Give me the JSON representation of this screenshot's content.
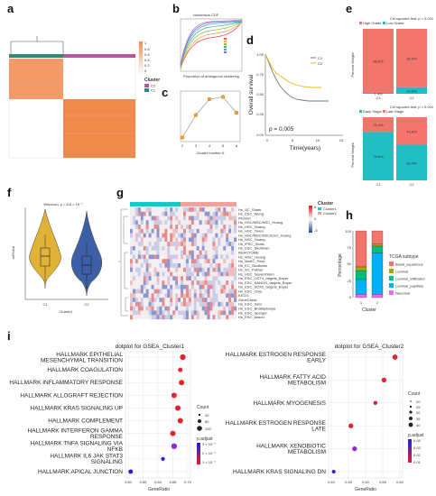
{
  "panels": {
    "a": "a",
    "b": "b",
    "c": "c",
    "d": "d",
    "e": "e",
    "f": "f",
    "g": "g",
    "h": "h",
    "i": "i"
  },
  "a": {
    "legend_title": "Cluster",
    "legend_items": [
      "C2",
      "C1"
    ],
    "scale_ticks": [
      "1",
      "0.8",
      "0.6",
      "0.4",
      "0.2",
      "0"
    ],
    "colors": {
      "c1": "#2e8b74",
      "c2": "#b5579b",
      "heat_high": "#f08a4b",
      "heat_low": "#ffffff"
    }
  },
  "b": {
    "title": "consensus CDF",
    "xlabel": "Proportion of ambiguous clustering"
  },
  "c": {
    "xlabel": "Cluster number K",
    "xticks": [
      "2",
      "3",
      "4",
      "5",
      "6"
    ],
    "chart_data": {
      "type": "line",
      "x": [
        2,
        3,
        4,
        5,
        6
      ],
      "y": [
        0.05,
        0.55,
        0.9,
        0.95,
        0.6
      ]
    }
  },
  "d": {
    "ylabel": "Overall survival",
    "xlabel": "Time(years)",
    "pvalue": "p = 0.005",
    "legend": [
      "C1",
      "C2"
    ],
    "xticks": [
      "0",
      "5",
      "10",
      "15"
    ],
    "yticks": [
      "0.00",
      "0.25",
      "0.50",
      "0.75",
      "1.00"
    ],
    "colors": {
      "c1": "#7a7a7a",
      "c2": "#e8b923"
    }
  },
  "e": {
    "top": {
      "test": "Chi squared test: p < 0.001",
      "legend": [
        "High Grade",
        "Low Grade"
      ],
      "ylabel": "Percent Weight",
      "chart_data": {
        "type": "bar",
        "categories": [
          "C1",
          "C2"
        ],
        "series": [
          {
            "name": "High Grade",
            "values": [
              98.6,
              90.0
            ]
          },
          {
            "name": "Low Grade",
            "values": [
              1.4,
              10.0
            ]
          }
        ]
      },
      "labels": [
        "98.6%",
        "1.4%",
        "90.0%",
        "10.0%"
      ]
    },
    "bottom": {
      "test": "Chi squared test: p < 0.001",
      "legend": [
        "Early Stage",
        "Late Stage"
      ],
      "ylabel": "Percent Weight",
      "chart_data": {
        "type": "bar",
        "categories": [
          "C1",
          "C2"
        ],
        "series": [
          {
            "name": "Late Stage",
            "values": [
              23.4,
              43.6
            ]
          },
          {
            "name": "Early Stage",
            "values": [
              76.6,
              56.4
            ]
          }
        ]
      },
      "labels": [
        "23.4%",
        "76.6%",
        "43.6%",
        "56.4%"
      ]
    },
    "colors": {
      "salmon": "#f4756c",
      "teal": "#1fbfc4"
    }
  },
  "f": {
    "title": "Wilcoxon, p = 8.6 × 10⁻⁷",
    "ylabel": "mRNAsi",
    "xlabel": "Cluster1",
    "xticks": [
      "C1",
      "C2"
    ],
    "colors": {
      "c1": "#e0b235",
      "c2": "#3d5fa6"
    }
  },
  "g": {
    "legend_title": "Cluster",
    "legend_items": [
      "Cluster1",
      "Cluster2"
    ],
    "scale_ticks": [
      "5",
      "0",
      "-5"
    ],
    "rows": [
      "Hs_SC_Shats",
      "Hs_ESC_Wong",
      "Plurinet",
      "Hs_HSC/MSC/NSC_Huang",
      "Hs_HSC_Huang",
      "Hs_HSC_Toren",
      "Hs_HSC/MSC/NSC/ESC_Huang",
      "Hs_NSC_Huang",
      "Hs_iPSC_Shats",
      "Hs_ESC_Skottman",
      "REACTOME",
      "Hs_MSC_Huang",
      "Hs_MaSC_Pece",
      "Hs_EC_Skottman",
      "Hs_SC_Palmer",
      "Hs_HSC_Novershtern",
      "Hs_ESC_OCT4_targets_Boyer",
      "Hs_ESC_NANOG_targets_Boyer",
      "Hs_ESC_SOX2_targets_Boyer",
      "Hs_ESC_Chia",
      "KEGG",
      "GeneCards",
      "Hs_ESC_Sato",
      "Hs_ESC_Bhattacharya",
      "Hs_ESC_Sperger",
      "Hs_ESC_Assou"
    ],
    "colors": {
      "cluster1": "#1fc3c9",
      "cluster2": "#f4a09a"
    }
  },
  "h": {
    "ylabel": "Percentage",
    "xlabel": "Cluster",
    "xticks": [
      "1",
      "2"
    ],
    "yticks": [
      "0",
      "25",
      "50",
      "75",
      "100"
    ],
    "legend_title": "TCGA subtype",
    "legend_items": [
      "Basal_squamous",
      "Luminal",
      "Luminal_infiltrated",
      "Luminal_papillary",
      "Neuronal"
    ],
    "chart_data": {
      "type": "bar",
      "categories": [
        "1",
        "2"
      ],
      "series": [
        {
          "name": "Basal_squamous",
          "values": [
            54,
            20
          ]
        },
        {
          "name": "Luminal",
          "values": [
            6,
            3
          ]
        },
        {
          "name": "Luminal_infiltrated",
          "values": [
            13,
            10
          ]
        },
        {
          "name": "Luminal_papillary",
          "values": [
            22,
            62
          ]
        },
        {
          "name": "Neuronal",
          "values": [
            5,
            5
          ]
        }
      ]
    },
    "colors": [
      "#f4756c",
      "#a3a500",
      "#00bf7d",
      "#00b0f6",
      "#e76bf3"
    ]
  },
  "i": {
    "left": {
      "title": "dotplot for GSEA_Cluster1",
      "xlabel": "GeneRatio",
      "xticks": [
        "0.50",
        "0.55",
        "0.60",
        "0.65",
        "0.70"
      ],
      "terms": [
        "HALLMARK EPITHELIAL MESENCHYMAL TRANSITION",
        "HALLMARK COAGULATION",
        "HALLMARK INFLAMMATORY RESPONSE",
        "HALLMARK ALLOGRAFT REJECTION",
        "HALLMARK KRAS SIGNALING UP",
        "HALLMARK COMPLEMENT",
        "HALLMARK INTERFERON GAMMA RESPONSE",
        "HALLMARK TNFA SIGNALING VIA NFKB",
        "HALLMARK IL6 JAK STAT3 SIGNALING",
        "HALLMARK APICAL JUNCTION"
      ],
      "count_title": "Count",
      "count_items": [
        "40",
        "80",
        "120"
      ],
      "padj_title": "p.adjust",
      "padj_ticks": [
        "3 × 10⁻⁷",
        "2 × 10⁻⁷",
        "1 × 10⁻⁷"
      ],
      "chart_data": {
        "type": "scatter",
        "x": [
          0.7,
          0.69,
          0.695,
          0.665,
          0.68,
          0.69,
          0.66,
          0.665,
          0.62,
          0.49
        ],
        "size": [
          110,
          70,
          100,
          100,
          100,
          100,
          100,
          110,
          50,
          70
        ]
      }
    },
    "right": {
      "title": "dotplot for GSEA_Cluster2",
      "xlabel": "GeneRatio",
      "xticks": [
        "0.40",
        "0.45",
        "0.50",
        "0.55",
        "0.60"
      ],
      "terms": [
        "HALLMARK ESTROGEN RESPONSE EARLY",
        "HALLMARK FATTY ACID METABOLISM",
        "HALLMARK MYOGENESIS",
        "HALLMARK ESTROGEN RESPONSE LATE",
        "HALLMARK XENOBIOTIC METABOLISM",
        "HALLMARK KRAS SIGNALING DN"
      ],
      "count_title": "Count",
      "count_items": [
        "20",
        "25",
        "30",
        "35",
        "40"
      ],
      "padj_title": "p.adjust",
      "padj_ticks": [
        "0.04",
        "0.03",
        "0.02",
        "0.01"
      ],
      "chart_data": {
        "type": "scatter",
        "x": [
          0.62,
          0.575,
          0.54,
          0.44,
          0.455,
          0.37
        ],
        "size": [
          40,
          35,
          25,
          35,
          35,
          20
        ]
      }
    }
  }
}
